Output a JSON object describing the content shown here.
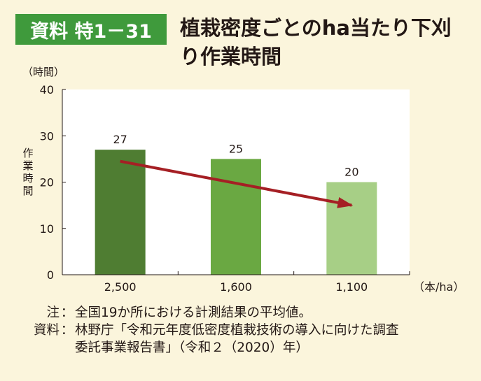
{
  "badge": "資料 特1－31",
  "title_lines": [
    "植栽密度ごとのha当たり下刈",
    "り作業時間"
  ],
  "chart_data": {
    "type": "bar",
    "title": "植栽密度ごとのha当たり下刈り作業時間",
    "categories": [
      "2,500",
      "1,600",
      "1,100"
    ],
    "values": [
      27,
      25,
      20
    ],
    "data_labels": [
      "27",
      "25",
      "20"
    ],
    "y_unit": "（時間）",
    "ylabel": "作業時間",
    "xlabel": "（本/ha）",
    "ylim": [
      0,
      40
    ],
    "yticks": [
      "0",
      "10",
      "20",
      "30",
      "40"
    ],
    "grid": false,
    "bar_colors": [
      "#4f7d32",
      "#6aa842",
      "#a7cf86"
    ],
    "trend_arrow": {
      "from_category": 0,
      "from_value": 24.5,
      "to_category": 2,
      "to_value": 15,
      "color": "#a51f24"
    },
    "plot_background": "#ffffff"
  },
  "notes": {
    "note_key": "注",
    "note_text": "全国19か所における計測結果の平均値。",
    "source_key": "資料",
    "source_text_1": "林野庁「令和元年度低密度植栽技術の導入に向けた調査",
    "source_text_2": "委託事業報告書」（令和２（2020）年）"
  }
}
